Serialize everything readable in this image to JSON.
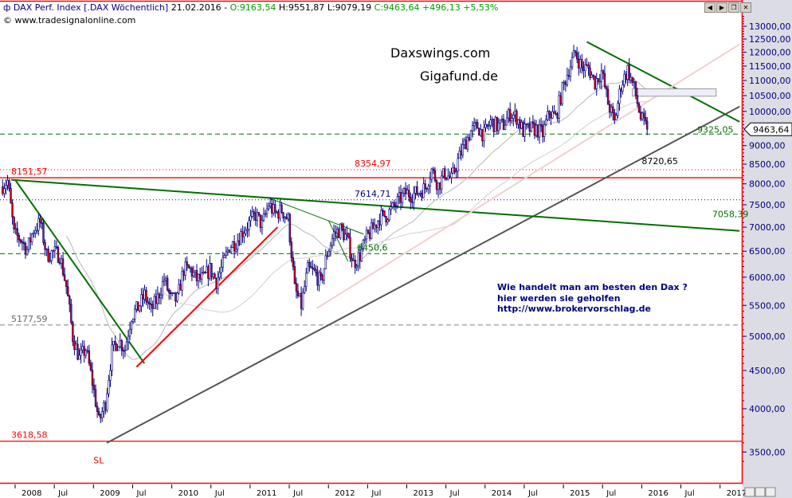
{
  "header": {
    "instrument": "DAX Perf. Index [.DAX  Wöchentlich]",
    "date": "21.02.2016",
    "dash": "-",
    "open": "O:9163,54",
    "high": "H:9551,87",
    "low": "L:9079,19",
    "close_change": "C:9463,64 +496,13 +5,53%",
    "copyright": "© www.tradesignalonline.com"
  },
  "window_buttons": [
    "left-arrow-icon",
    "right-arrow-icon",
    "restore-icon",
    "close-icon"
  ],
  "colors": {
    "up": "#000080",
    "down": "#e00000",
    "support": "#555555",
    "resistance": "#007000",
    "border": "#ff0000",
    "axis_bg": "#dcdce4"
  },
  "chart_data": {
    "type": "candlestick",
    "title": "DAX Perf. Index weekly",
    "yscale": "log",
    "ylim": [
      3300,
      13600
    ],
    "xlim": [
      2007.8,
      2017.25
    ],
    "y_ticks": [
      "13000,00",
      "12500,00",
      "12000,00",
      "11500,00",
      "11000,00",
      "10500,00",
      "10000,00",
      "9000,00",
      "8500,00",
      "8000,00",
      "7500,00",
      "7000,00",
      "6500,00",
      "6000,00",
      "5500,00",
      "5000,00",
      "4500,00",
      "4000,00",
      "3500,00"
    ],
    "y_tick_values": [
      13000,
      12500,
      12000,
      11500,
      11000,
      10500,
      10000,
      9000,
      8500,
      8000,
      7500,
      7000,
      6500,
      6000,
      5500,
      5000,
      4500,
      4000,
      3500
    ],
    "x_ticks": [
      {
        "label": "2008",
        "t": 2008.0
      },
      {
        "label": "Jul",
        "t": 2008.5
      },
      {
        "label": "2009",
        "t": 2009.0
      },
      {
        "label": "Jul",
        "t": 2009.5
      },
      {
        "label": "2010",
        "t": 2010.0
      },
      {
        "label": "Jul",
        "t": 2010.5
      },
      {
        "label": "2011",
        "t": 2011.0
      },
      {
        "label": "Jul",
        "t": 2011.5
      },
      {
        "label": "2012",
        "t": 2012.0
      },
      {
        "label": "Jul",
        "t": 2012.5
      },
      {
        "label": "2013",
        "t": 2013.0
      },
      {
        "label": "Jul",
        "t": 2013.5
      },
      {
        "label": "2014",
        "t": 2014.0
      },
      {
        "label": "Jul",
        "t": 2014.5
      },
      {
        "label": "2015",
        "t": 2015.0
      },
      {
        "label": "Jul",
        "t": 2015.5
      },
      {
        "label": "2016",
        "t": 2016.0
      },
      {
        "label": "Jul",
        "t": 2016.5
      },
      {
        "label": "2017",
        "t": 2017.0
      }
    ],
    "start": 2007.83,
    "monthly_closes": [
      7930,
      8067,
      6850,
      6750,
      6530,
      6950,
      7100,
      6420,
      6480,
      6420,
      5830,
      4990,
      4670,
      4810,
      4340,
      3840,
      4080,
      4770,
      4940,
      4810,
      5330,
      5460,
      5680,
      5410,
      5630,
      5960,
      5610,
      5600,
      6150,
      6140,
      5960,
      5970,
      6150,
      5930,
      6230,
      6600,
      6690,
      6910,
      7080,
      7270,
      7040,
      7510,
      7290,
      7380,
      7160,
      5780,
      5500,
      6140,
      6090,
      5900,
      6460,
      6860,
      6950,
      6760,
      6260,
      6420,
      6770,
      6970,
      7220,
      7260,
      7410,
      7610,
      7780,
      7740,
      7800,
      7910,
      8350,
      7960,
      8280,
      8100,
      8590,
      9030,
      9410,
      9550,
      9300,
      9690,
      9560,
      9600,
      9940,
      9830,
      9410,
      9470,
      9470,
      9330,
      9980,
      9810,
      10690,
      11400,
      11970,
      11450,
      11410,
      10940,
      11310,
      10260,
      9660,
      10850,
      11380,
      10740,
      9800,
      9463.64
    ],
    "current_price": {
      "label": "9463,64",
      "value": 9463.64
    },
    "horizontal_levels": [
      {
        "value": 8151.57,
        "label": "8151,57",
        "style": "solid",
        "color": "#ff0000"
      },
      {
        "value": 3618.58,
        "label": "3618,58",
        "style": "solid",
        "color": "#ff0000"
      },
      {
        "value": 8354.97,
        "label": "8354,97",
        "style": "dotted",
        "color": "#ff0000"
      },
      {
        "value": 7614.71,
        "label": "7614,71",
        "style": "dotted",
        "color": "#000080"
      },
      {
        "value": 9325.05,
        "label": "9325,05",
        "style": "dashed",
        "color": "#007000"
      },
      {
        "value": 6450.6,
        "label": "6450,6",
        "style": "dashed",
        "color": "#007000"
      },
      {
        "value": 5177.59,
        "label": "5177,59",
        "style": "dashed",
        "color": "#808080"
      }
    ],
    "trendlines": [
      {
        "name": "long-term-support",
        "from": [
          2009.17,
          3600
        ],
        "to": [
          2017.25,
          10150
        ],
        "color": "#555555",
        "width": 2
      },
      {
        "name": "resistance-2015",
        "from": [
          2015.3,
          12390
        ],
        "to": [
          2017.25,
          9685
        ],
        "color": "#007000",
        "width": 2
      },
      {
        "name": "long-resistance",
        "from": [
          2007.95,
          8100
        ],
        "to": [
          2017.25,
          6920
        ],
        "color": "#007000",
        "width": 2
      },
      {
        "name": "downtrend-2008",
        "from": [
          2008.0,
          8100
        ],
        "to": [
          2009.65,
          4600
        ],
        "color": "#007000",
        "width": 2
      },
      {
        "name": "uptrend-2009",
        "from": [
          2009.55,
          4550
        ],
        "to": [
          2011.35,
          7000
        ],
        "color": "#ff0000",
        "width": 2
      },
      {
        "name": "wedge-2011-upper",
        "from": [
          2011.25,
          7650
        ],
        "to": [
          2012.45,
          6850
        ],
        "color": "#007000",
        "width": 1
      },
      {
        "name": "wedge-2012",
        "from": [
          2012.0,
          7150
        ],
        "to": [
          2012.25,
          6300
        ],
        "color": "#007000",
        "width": 1
      },
      {
        "name": "pink-channel",
        "from": [
          2011.85,
          5450
        ],
        "to": [
          2017.25,
          12300
        ],
        "color": "#f0d0d0",
        "width": 2
      }
    ],
    "box": {
      "from": [
        2015.88,
        10720
      ],
      "to": [
        2016.95,
        10480
      ]
    },
    "annotations": [
      {
        "text": "8720,65",
        "t": 2016.0,
        "v": 8500,
        "color": "#000"
      },
      {
        "text": "7058,39",
        "t": 2016.9,
        "v": 7220,
        "color": "#007000"
      },
      {
        "text": "SL",
        "t": 2009.0,
        "v": 3380,
        "color": "#e00000"
      }
    ],
    "notes": {
      "brand1": "Daxswings.com",
      "brand2": "Gigafund.de",
      "ad_line1": "Wie handelt man am besten  den Dax ?",
      "ad_line2": "hier werden sie geholfen",
      "ad_line3": "http://www.brokervorschlag.de"
    }
  }
}
